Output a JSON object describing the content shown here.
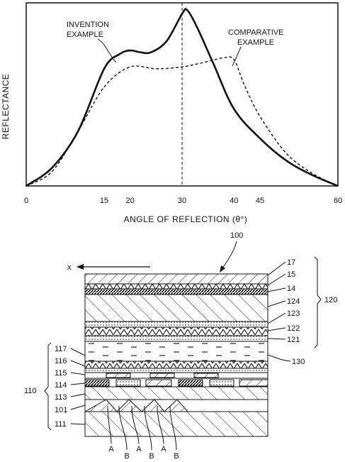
{
  "chart_data": {
    "type": "line",
    "title": "",
    "xlabel": "ANGLE OF REFLECTION (θ°)",
    "ylabel": "REFLECTANCE",
    "xlim": [
      0,
      60
    ],
    "x_ticks": [
      "0",
      "15",
      "20",
      "30",
      "40",
      "45",
      "60"
    ],
    "reference_line_x": 30,
    "series": [
      {
        "name": "INVENTION EXAMPLE",
        "style": "solid",
        "x": [
          0,
          5,
          10,
          15,
          18,
          20,
          22,
          24,
          27,
          30,
          31,
          33,
          36,
          40,
          45,
          50,
          55,
          60
        ],
        "y": [
          0.0,
          0.1,
          0.3,
          0.64,
          0.72,
          0.74,
          0.73,
          0.73,
          0.79,
          0.94,
          0.96,
          0.86,
          0.67,
          0.42,
          0.26,
          0.14,
          0.06,
          0.0
        ]
      },
      {
        "name": "COMPARATIVE EXAMPLE",
        "style": "dashed",
        "x": [
          0,
          5,
          10,
          15,
          20,
          25,
          30,
          35,
          38,
          40,
          42,
          45,
          50,
          55,
          60
        ],
        "y": [
          0.0,
          0.08,
          0.3,
          0.54,
          0.65,
          0.64,
          0.65,
          0.68,
          0.7,
          0.69,
          0.55,
          0.38,
          0.18,
          0.07,
          0.0
        ]
      }
    ]
  },
  "series_labels": {
    "invention": [
      "INVENTION",
      "EXAMPLE"
    ],
    "comparative": [
      "COMPARATIVE",
      "EXAMPLE"
    ]
  },
  "diagram": {
    "title_ref": "100",
    "direction_label": "x",
    "right_labels": [
      "17",
      "15",
      "14",
      "124",
      "123",
      "122",
      "121"
    ],
    "group_top": "120",
    "label_130": "130",
    "left_labels": [
      "117",
      "116",
      "115",
      "114",
      "113",
      "101",
      "111"
    ],
    "group_bottom": "110",
    "bottom_labels": [
      "A",
      "B",
      "A",
      "B",
      "A",
      "B"
    ]
  }
}
